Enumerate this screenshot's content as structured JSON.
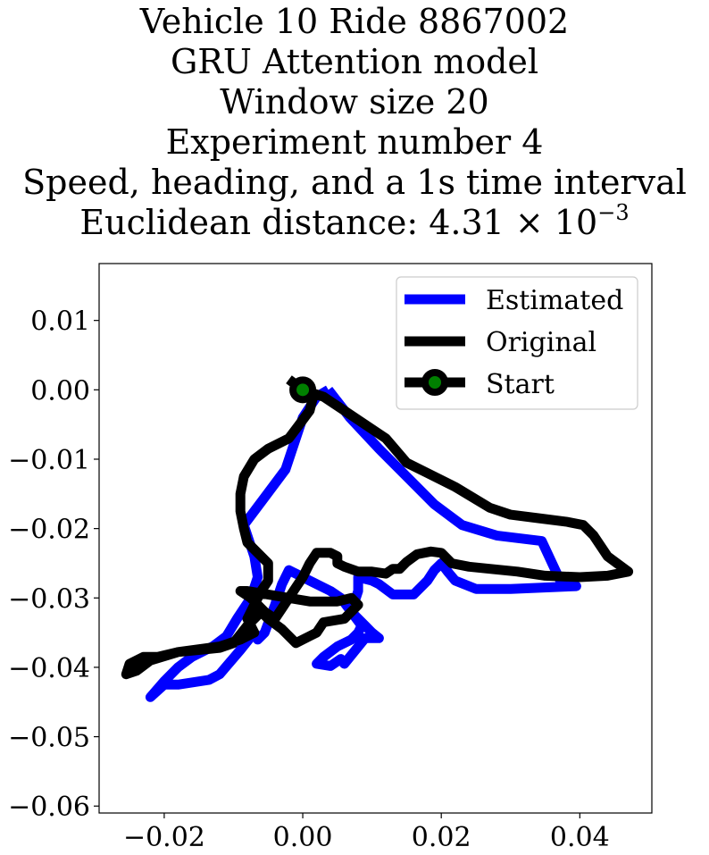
{
  "title_lines": [
    "Vehicle 10 Ride 8867002",
    "GRU Attention model",
    "Window size 20",
    "Experiment number 4",
    "Speed, heading, and a 1s time interval"
  ],
  "distance_label": "Euclidean distance: 4.31 × 10",
  "distance_exponent": "−3",
  "chart_data": {
    "type": "line",
    "xlim": [
      -0.0294,
      0.0504
    ],
    "ylim": [
      -0.061,
      0.0182
    ],
    "xticks": [
      -0.02,
      0.0,
      0.02,
      0.04
    ],
    "yticks": [
      0.01,
      0.0,
      -0.01,
      -0.02,
      -0.03,
      -0.04,
      -0.05,
      -0.06
    ],
    "xtick_labels": [
      "−0.02",
      "0.00",
      "0.02",
      "0.04"
    ],
    "ytick_labels": [
      "0.01",
      "0.00",
      "−0.01",
      "−0.02",
      "−0.03",
      "−0.04",
      "−0.05",
      "−0.06"
    ],
    "grid": false,
    "legend_position": "top-right",
    "colors": {
      "estimated": "#0000ff",
      "original": "#000000",
      "start_marker": "#008000"
    },
    "series": [
      {
        "name": "Estimated",
        "points": [
          [
            0.0037,
            0.0
          ],
          [
            0.0068,
            -0.004
          ],
          [
            0.011,
            -0.0085
          ],
          [
            0.015,
            -0.0125
          ],
          [
            0.019,
            -0.0165
          ],
          [
            0.023,
            -0.0195
          ],
          [
            0.028,
            -0.021
          ],
          [
            0.0345,
            -0.0218
          ],
          [
            0.0375,
            -0.0282
          ],
          [
            0.0395,
            -0.0283
          ],
          [
            0.03,
            -0.0287
          ],
          [
            0.025,
            -0.0287
          ],
          [
            0.022,
            -0.0275
          ],
          [
            0.021,
            -0.0263
          ],
          [
            0.02,
            -0.025
          ],
          [
            0.019,
            -0.026
          ],
          [
            0.018,
            -0.0275
          ],
          [
            0.016,
            -0.0295
          ],
          [
            0.013,
            -0.0295
          ],
          [
            0.011,
            -0.028
          ],
          [
            0.01,
            -0.0275
          ],
          [
            0.008,
            -0.027
          ],
          [
            0.008,
            -0.029
          ],
          [
            0.007,
            -0.032
          ],
          [
            0.009,
            -0.034
          ],
          [
            0.01,
            -0.035
          ],
          [
            0.011,
            -0.0358
          ],
          [
            0.009,
            -0.0358
          ],
          [
            0.006,
            -0.0395
          ],
          [
            0.0055,
            -0.0388
          ],
          [
            0.004,
            -0.0398
          ],
          [
            0.002,
            -0.0395
          ],
          [
            0.003,
            -0.0385
          ],
          [
            0.005,
            -0.037
          ],
          [
            0.007,
            -0.036
          ],
          [
            0.008,
            -0.035
          ],
          [
            0.0085,
            -0.034
          ],
          [
            0.007,
            -0.032
          ],
          [
            0.0055,
            -0.03
          ],
          [
            0.004,
            -0.029
          ],
          [
            0.002,
            -0.028
          ],
          [
            0.001,
            -0.0275
          ],
          [
            -0.001,
            -0.0265
          ],
          [
            -0.002,
            -0.026
          ],
          [
            -0.003,
            -0.028
          ],
          [
            -0.004,
            -0.031
          ],
          [
            -0.0055,
            -0.035
          ],
          [
            -0.0065,
            -0.036
          ],
          [
            -0.007,
            -0.035
          ],
          [
            -0.009,
            -0.0375
          ],
          [
            -0.012,
            -0.041
          ],
          [
            -0.0135,
            -0.0418
          ],
          [
            -0.018,
            -0.0425
          ],
          [
            -0.02,
            -0.0425
          ],
          [
            -0.022,
            -0.0443
          ],
          [
            -0.02,
            -0.042
          ],
          [
            -0.018,
            -0.04
          ],
          [
            -0.016,
            -0.0385
          ],
          [
            -0.013,
            -0.037
          ],
          [
            -0.011,
            -0.0355
          ],
          [
            -0.0095,
            -0.033
          ],
          [
            -0.0075,
            -0.03
          ],
          [
            -0.0065,
            -0.027
          ],
          [
            -0.007,
            -0.024
          ],
          [
            -0.0085,
            -0.0195
          ],
          [
            -0.0055,
            -0.0155
          ],
          [
            -0.0025,
            -0.0115
          ],
          [
            0.0,
            -0.004
          ],
          [
            0.002,
            -0.001
          ],
          [
            0.0037,
            0.0
          ]
        ]
      },
      {
        "name": "Original",
        "points": [
          [
            -0.002,
            0.0015
          ],
          [
            0.0,
            0.0
          ],
          [
            0.003,
            -0.001
          ],
          [
            0.006,
            -0.003
          ],
          [
            0.009,
            -0.005
          ],
          [
            0.012,
            -0.007
          ],
          [
            0.015,
            -0.0105
          ],
          [
            0.018,
            -0.012
          ],
          [
            0.022,
            -0.014
          ],
          [
            0.027,
            -0.017
          ],
          [
            0.03,
            -0.018
          ],
          [
            0.034,
            -0.0185
          ],
          [
            0.038,
            -0.019
          ],
          [
            0.0405,
            -0.0195
          ],
          [
            0.042,
            -0.021
          ],
          [
            0.044,
            -0.024
          ],
          [
            0.047,
            -0.0262
          ],
          [
            0.044,
            -0.0268
          ],
          [
            0.04,
            -0.027
          ],
          [
            0.035,
            -0.0268
          ],
          [
            0.031,
            -0.0262
          ],
          [
            0.027,
            -0.0258
          ],
          [
            0.024,
            -0.0255
          ],
          [
            0.0215,
            -0.025
          ],
          [
            0.02,
            -0.0235
          ],
          [
            0.0185,
            -0.0233
          ],
          [
            0.0165,
            -0.0237
          ],
          [
            0.015,
            -0.0248
          ],
          [
            0.014,
            -0.0258
          ],
          [
            0.013,
            -0.0258
          ],
          [
            0.012,
            -0.0265
          ],
          [
            0.01,
            -0.0262
          ],
          [
            0.008,
            -0.0262
          ],
          [
            0.006,
            -0.0255
          ],
          [
            0.005,
            -0.025
          ],
          [
            0.005,
            -0.024
          ],
          [
            0.004,
            -0.0235
          ],
          [
            0.002,
            -0.0235
          ],
          [
            0.001,
            -0.025
          ],
          [
            0.0,
            -0.027
          ],
          [
            -0.001,
            -0.0285
          ],
          [
            -0.002,
            -0.03
          ],
          [
            -0.003,
            -0.0315
          ],
          [
            -0.004,
            -0.033
          ],
          [
            -0.0055,
            -0.032
          ],
          [
            -0.0075,
            -0.03
          ],
          [
            -0.009,
            -0.029
          ],
          [
            -0.008,
            -0.029
          ],
          [
            -0.005,
            -0.0295
          ],
          [
            -0.002,
            -0.03
          ],
          [
            0.001,
            -0.0305
          ],
          [
            0.005,
            -0.0305
          ],
          [
            0.007,
            -0.03
          ],
          [
            0.008,
            -0.031
          ],
          [
            0.006,
            -0.033
          ],
          [
            0.003,
            -0.0335
          ],
          [
            0.002,
            -0.035
          ],
          [
            0.001,
            -0.0355
          ],
          [
            -0.001,
            -0.0365
          ],
          [
            -0.003,
            -0.0345
          ],
          [
            -0.005,
            -0.033
          ],
          [
            -0.006,
            -0.032
          ],
          [
            -0.008,
            -0.034
          ],
          [
            -0.01,
            -0.0365
          ],
          [
            -0.012,
            -0.0372
          ],
          [
            -0.015,
            -0.0375
          ],
          [
            -0.018,
            -0.0378
          ],
          [
            -0.021,
            -0.0385
          ],
          [
            -0.023,
            -0.0385
          ],
          [
            -0.025,
            -0.0395
          ],
          [
            -0.0255,
            -0.041
          ],
          [
            -0.024,
            -0.0405
          ],
          [
            -0.022,
            -0.039
          ],
          [
            -0.018,
            -0.0378
          ],
          [
            -0.012,
            -0.037
          ],
          [
            -0.009,
            -0.036
          ],
          [
            -0.007,
            -0.035
          ],
          [
            -0.008,
            -0.033
          ],
          [
            -0.007,
            -0.031
          ],
          [
            -0.006,
            -0.029
          ],
          [
            -0.005,
            -0.0275
          ],
          [
            -0.005,
            -0.025
          ],
          [
            -0.0065,
            -0.0235
          ],
          [
            -0.008,
            -0.022
          ],
          [
            -0.0085,
            -0.02
          ],
          [
            -0.009,
            -0.0175
          ],
          [
            -0.009,
            -0.015
          ],
          [
            -0.0085,
            -0.0125
          ],
          [
            -0.007,
            -0.01
          ],
          [
            -0.005,
            -0.0085
          ],
          [
            -0.002,
            -0.007
          ],
          [
            -0.0005,
            -0.005
          ],
          [
            0.001,
            -0.003
          ],
          [
            0.0015,
            -0.001
          ],
          [
            0.0,
            0.0
          ]
        ]
      }
    ],
    "start_point": {
      "name": "Start",
      "x": 0.0,
      "y": 0.0
    }
  }
}
